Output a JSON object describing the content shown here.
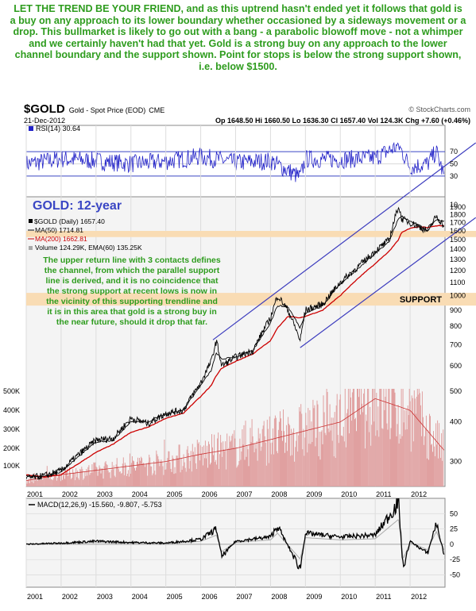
{
  "commentary": {
    "headline": "LET THE TREND BE YOUR FRIEND, and as this uptrend hasn't ended yet it follows that gold is a buy on any approach to its lower boundary whether occasioned by a sideways movement or a drop. This bullmarket is likely to go out with a bang - a parabolic blowoff move - not a whimper and we certainly haven't had that yet. Gold is a strong buy on any approach to the lower channel boundary and the support shown. Point for stops is below the strong support shown, i.e. below $1500."
  },
  "chart_header": {
    "symbol": "$GOLD",
    "name": "Gold - Spot Price (EOD)",
    "exchange": "CME",
    "source": "© StockCharts.com",
    "date": "21-Dec-2012",
    "quote": "Op 1648.50  Hi 1660.50  Lo 1636.30  Cl 1657.40  Vol 124.3K  Chg +7.60 (+0.46%)"
  },
  "rsi_panel": {
    "label": "RSI(14) 30.64",
    "ticks": [
      "70",
      "50",
      "30"
    ],
    "levels": {
      "overbought": 70,
      "oversold": 30
    },
    "ylim": [
      0,
      100
    ]
  },
  "price_panel": {
    "title": "GOLD: 12-year",
    "legend": {
      "price": "$GOLD (Daily) 1657.40",
      "ma50": "MA(50) 1714.81",
      "ma200": "MA(200) 1662.81",
      "volume": "Volume 124.29K, EMA(60) 135.25K"
    },
    "annotation_lines": [
      "The upper return line with 3 contacts defines",
      "the channel, from which the parallel support",
      "line is derived, and it is no coincidence that",
      "the strong support at recent lows is now in",
      "the vicinity of this supporting trendline and",
      "it is in this area that gold is a strong buy in",
      "the near future, should it drop that far."
    ],
    "support_label": "SUPPORT",
    "support_zone": [
      1530,
      1600
    ],
    "lower_support_zone": [
      930,
      1020
    ],
    "price_ticks": [
      10,
      1900,
      1800,
      1700,
      1600,
      1500,
      1400,
      1300,
      1200,
      1100,
      1000,
      900,
      800,
      700,
      600,
      500,
      400,
      300
    ],
    "volume_ticks": [
      "500K",
      "400K",
      "300K",
      "200K",
      "100K"
    ]
  },
  "macd_panel": {
    "label": "MACD(12,26,9) -15.560, -9.807, -5.753",
    "ticks": [
      50,
      25,
      0,
      -25,
      -50
    ],
    "ylim": [
      -70,
      75
    ]
  },
  "x_axis": {
    "labels": [
      "2001",
      "2002",
      "2003",
      "2004",
      "2005",
      "2006",
      "2007",
      "2008",
      "2009",
      "2010",
      "2011",
      "2012"
    ]
  },
  "colors": {
    "headline": "#2e9c1e",
    "annotation": "#2e9c1e",
    "title": "#3a46c4",
    "price": "#000000",
    "ma50": "#000000",
    "ma200": "#cc0000",
    "rsi": "#2323c8",
    "volume": "#e0a0a0",
    "channel": "#3c3cbe",
    "support": "#f9dcb4",
    "panel_bg": "#f4f4f4"
  },
  "chart_data": [
    {
      "type": "line",
      "title": "GOLD: 12-year",
      "x": [
        2001.0,
        2001.5,
        2002.0,
        2002.5,
        2003.0,
        2003.5,
        2004.0,
        2004.5,
        2005.0,
        2005.5,
        2006.0,
        2006.3,
        2006.45,
        2006.6,
        2007.0,
        2007.5,
        2008.0,
        2008.2,
        2008.5,
        2008.85,
        2009.0,
        2009.5,
        2010.0,
        2010.5,
        2011.0,
        2011.4,
        2011.67,
        2011.75,
        2012.0,
        2012.25,
        2012.5,
        2012.75,
        2012.97
      ],
      "series": [
        {
          "name": "$GOLD (Daily) 1657.40",
          "values": [
            265,
            270,
            280,
            315,
            350,
            355,
            410,
            395,
            425,
            435,
            530,
            620,
            720,
            600,
            640,
            670,
            850,
            1000,
            900,
            720,
            900,
            940,
            1100,
            1230,
            1380,
            1500,
            1920,
            1750,
            1700,
            1650,
            1600,
            1780,
            1657
          ]
        },
        {
          "name": "MA(50) 1714.81",
          "values": [
            270,
            268,
            278,
            310,
            345,
            350,
            400,
            400,
            425,
            435,
            520,
            580,
            660,
            630,
            640,
            670,
            820,
            930,
            920,
            790,
            880,
            930,
            1090,
            1210,
            1360,
            1480,
            1750,
            1780,
            1720,
            1670,
            1600,
            1740,
            1715
          ]
        },
        {
          "name": "MA(200) 1662.81",
          "values": [
            272,
            268,
            272,
            295,
            320,
            340,
            370,
            385,
            410,
            425,
            480,
            520,
            560,
            590,
            620,
            655,
            720,
            790,
            860,
            850,
            860,
            900,
            1000,
            1130,
            1260,
            1380,
            1500,
            1580,
            1630,
            1650,
            1640,
            1660,
            1663
          ]
        }
      ],
      "ylim": [
        250,
        2050
      ],
      "scale": "log"
    },
    {
      "type": "line",
      "name": "channel-lines",
      "series": [
        {
          "name": "",
          "x": [
            2006.35,
            2012.97
          ],
          "values": [
            725,
            2480
          ]
        },
        {
          "name": "",
          "x": [
            2008.85,
            2012.97
          ],
          "values": [
            685,
            1500
          ]
        }
      ]
    },
    {
      "type": "bar",
      "name": "volume",
      "x": [
        2001.0,
        2002.0,
        2003.0,
        2004.0,
        2005.0,
        2006.0,
        2007.0,
        2008.0,
        2009.0,
        2010.0,
        2011.0,
        2012.0,
        2012.97
      ],
      "values": [
        20,
        40,
        55,
        70,
        85,
        110,
        130,
        160,
        190,
        220,
        300,
        260,
        124
      ],
      "ylim": [
        0,
        600
      ]
    },
    {
      "type": "line",
      "name": "RSI(14)",
      "x": [
        2001.0,
        2002.0,
        2003.0,
        2004.0,
        2005.0,
        2006.0,
        2007.0,
        2008.0,
        2008.85,
        2009.0,
        2010.0,
        2011.0,
        2011.67,
        2012.0,
        2012.5,
        2012.75,
        2012.97
      ],
      "values": [
        50,
        58,
        55,
        50,
        54,
        62,
        52,
        55,
        28,
        58,
        57,
        60,
        80,
        45,
        50,
        70,
        30.64
      ]
    },
    {
      "type": "line",
      "name": "MACD(12,26,9)",
      "x": [
        2001.0,
        2002.0,
        2003.0,
        2004.0,
        2005.0,
        2006.0,
        2006.45,
        2006.6,
        2007.0,
        2008.0,
        2008.2,
        2008.85,
        2009.0,
        2010.0,
        2011.0,
        2011.67,
        2011.8,
        2012.0,
        2012.5,
        2012.75,
        2012.97
      ],
      "values": [
        0,
        2,
        5,
        3,
        2,
        8,
        25,
        -20,
        5,
        12,
        30,
        -40,
        18,
        12,
        15,
        68,
        -40,
        5,
        -15,
        35,
        -15.56
      ]
    }
  ]
}
